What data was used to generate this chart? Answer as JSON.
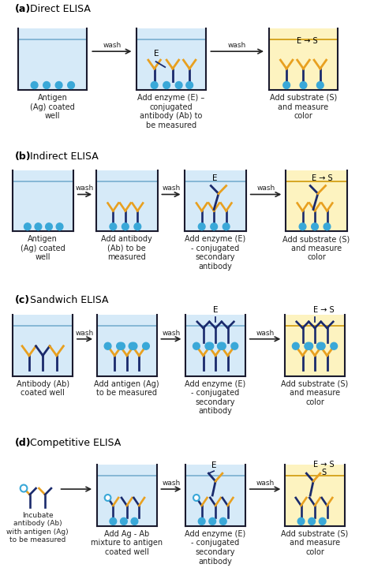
{
  "colors": {
    "well_fill_blue": "#d6eaf8",
    "well_fill_yellow": "#fdf3c0",
    "well_outline": "#1a1a2e",
    "water_line_blue": "#7fb3d3",
    "water_line_yellow": "#d4a017",
    "ab_dark": "#1a2a6c",
    "ab_yellow": "#e8a020",
    "ag_dot": "#3aa8d8",
    "text_color": "#222222",
    "arrow_color": "#222222"
  },
  "sections": [
    {
      "label": "(a)",
      "title": " Direct ELISA"
    },
    {
      "label": "(b)",
      "title": " Indirect ELISA"
    },
    {
      "label": "(c)",
      "title": " Sandwich ELISA"
    },
    {
      "label": "(d)",
      "title": " Competitive ELISA"
    }
  ]
}
